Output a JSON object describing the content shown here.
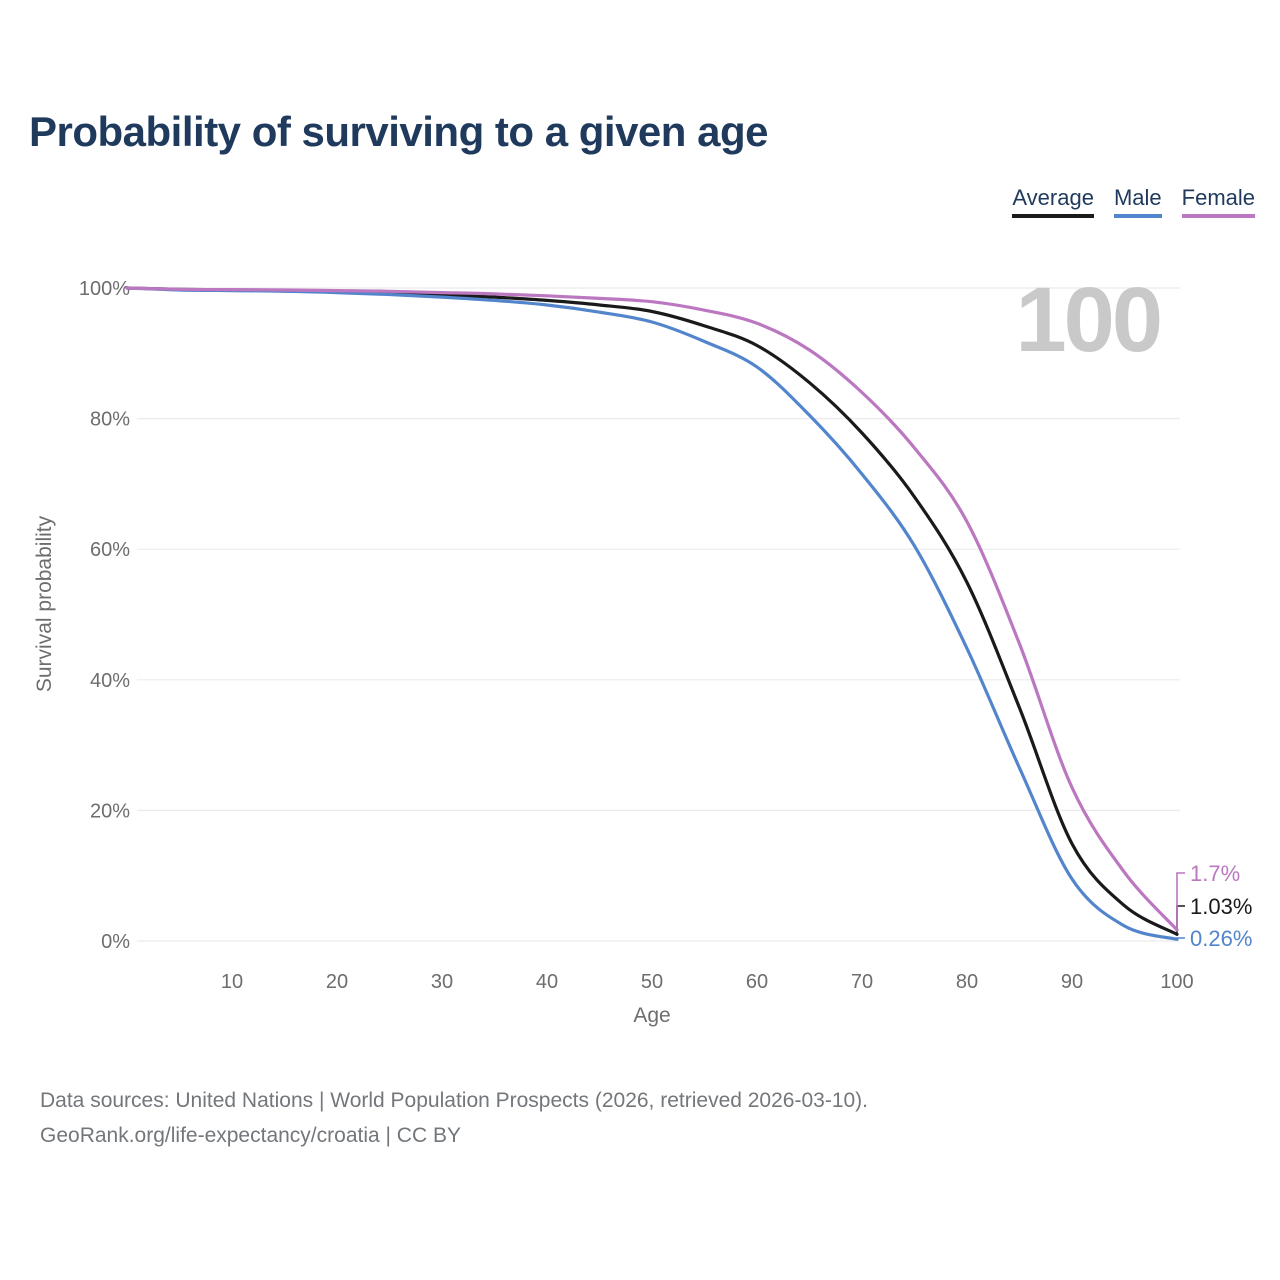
{
  "title": "Probability of surviving to a given age",
  "source": {
    "line1": "Data sources: United Nations | World Population Prospects (2026, retrieved 2026-03-10).",
    "line2": "GeoRank.org/life-expectancy/croatia | CC BY"
  },
  "colors": {
    "title_text": "#1f3a5c",
    "axis_text": "#6d6d6d",
    "grid_line": "#ebebeb",
    "watermark_text": "#c9c9c9",
    "source_text": "#73777b",
    "average": "#1a1a1a",
    "male": "#5285cb",
    "female": "#bb77c0"
  },
  "chart_data": {
    "type": "line",
    "title": "Probability of surviving to a given age",
    "xlabel": "Age",
    "ylabel": "Survival probability",
    "xlim": [
      0,
      100
    ],
    "ylim": [
      0,
      100
    ],
    "grid": "horizontal",
    "legend_position": "top-right",
    "watermark": "100",
    "x_ticks": [
      10,
      20,
      30,
      40,
      50,
      60,
      70,
      80,
      90,
      100
    ],
    "x_tick_labels": [
      "10",
      "20",
      "30",
      "40",
      "50",
      "60",
      "70",
      "80",
      "90",
      "100"
    ],
    "y_ticks": [
      0,
      20,
      40,
      60,
      80,
      100
    ],
    "y_tick_labels": [
      "0%",
      "20%",
      "40%",
      "60%",
      "80%",
      "100%"
    ],
    "x": [
      0,
      5,
      10,
      15,
      20,
      25,
      30,
      35,
      40,
      45,
      50,
      55,
      60,
      65,
      70,
      75,
      80,
      85,
      90,
      95,
      100
    ],
    "series": [
      {
        "name": "Average",
        "color": "#1a1a1a",
        "end_label": "1.03%",
        "values": [
          100,
          99.8,
          99.7,
          99.6,
          99.5,
          99.3,
          99.0,
          98.6,
          98.1,
          97.4,
          96.4,
          94.2,
          91.2,
          85.5,
          77.8,
          68.0,
          54.9,
          35.7,
          14.9,
          5.4,
          1.03
        ]
      },
      {
        "name": "Male",
        "color": "#5285cb",
        "end_label": "0.26%",
        "values": [
          100,
          99.7,
          99.6,
          99.5,
          99.3,
          99.0,
          98.6,
          98.1,
          97.4,
          96.3,
          94.8,
          91.8,
          87.9,
          80.5,
          71.5,
          60.5,
          44.8,
          26.5,
          9.5,
          2.3,
          0.26
        ]
      },
      {
        "name": "Female",
        "color": "#bb77c0",
        "end_label": "1.7%",
        "values": [
          100,
          99.8,
          99.75,
          99.7,
          99.6,
          99.5,
          99.3,
          99.1,
          98.8,
          98.4,
          97.9,
          96.6,
          94.6,
          90.5,
          84.0,
          75.5,
          64.2,
          45.5,
          23.5,
          10.5,
          1.7
        ]
      }
    ]
  }
}
